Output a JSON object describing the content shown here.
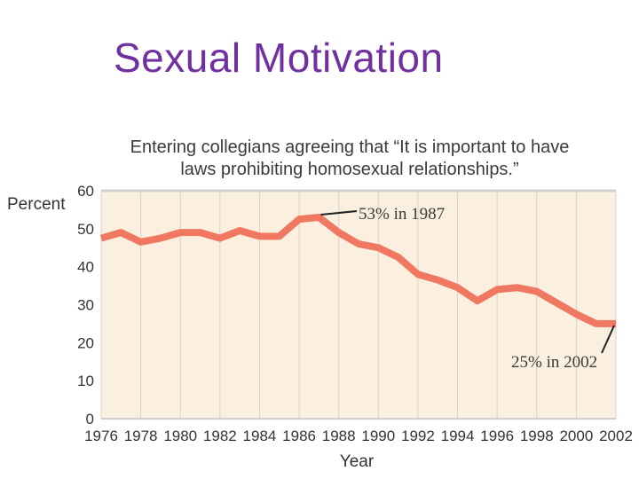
{
  "slide": {
    "title": "Sexual Motivation"
  },
  "colors": {
    "title": "#7030a0",
    "plot_background": "#fbf0e0",
    "grid": "#d9d2c8",
    "line": "#f07860",
    "text": "#333333"
  },
  "chart_data": {
    "type": "line",
    "title_lines": [
      "Entering collegians agreeing that “It is important to have",
      "laws prohibiting homosexual relationships.”"
    ],
    "ylabel": "Percent",
    "xlabel": "Year",
    "ylim": [
      0,
      60
    ],
    "xlim": [
      1976,
      2002
    ],
    "y_ticks": [
      "0",
      "10",
      "20",
      "30",
      "40",
      "50",
      "60"
    ],
    "x_ticks": [
      "1976",
      "1978",
      "1980",
      "1982",
      "1984",
      "1986",
      "1988",
      "1990",
      "1992",
      "1994",
      "1996",
      "1998",
      "2000",
      "2002"
    ],
    "grid": "vertical",
    "series": [
      {
        "x": [
          1976,
          1977,
          1978,
          1979,
          1980,
          1981,
          1982,
          1983,
          1984,
          1985,
          1986,
          1987,
          1988,
          1989,
          1990,
          1991,
          1992,
          1993,
          1994,
          1995,
          1996,
          1997,
          1998,
          1999,
          2000,
          2001,
          2002
        ],
        "values": [
          47.5,
          49,
          46.5,
          47.5,
          49,
          49,
          47.5,
          49.5,
          48,
          48,
          52.5,
          53,
          49,
          46,
          45,
          42.5,
          38,
          36.5,
          34.5,
          31,
          34,
          34.5,
          33.5,
          30.5,
          27.5,
          25,
          25
        ]
      }
    ],
    "annotations": [
      {
        "text": "53% in 1987",
        "x": 1987,
        "y": 53
      },
      {
        "text": "25% in 2002",
        "x": 2002,
        "y": 25
      }
    ]
  }
}
